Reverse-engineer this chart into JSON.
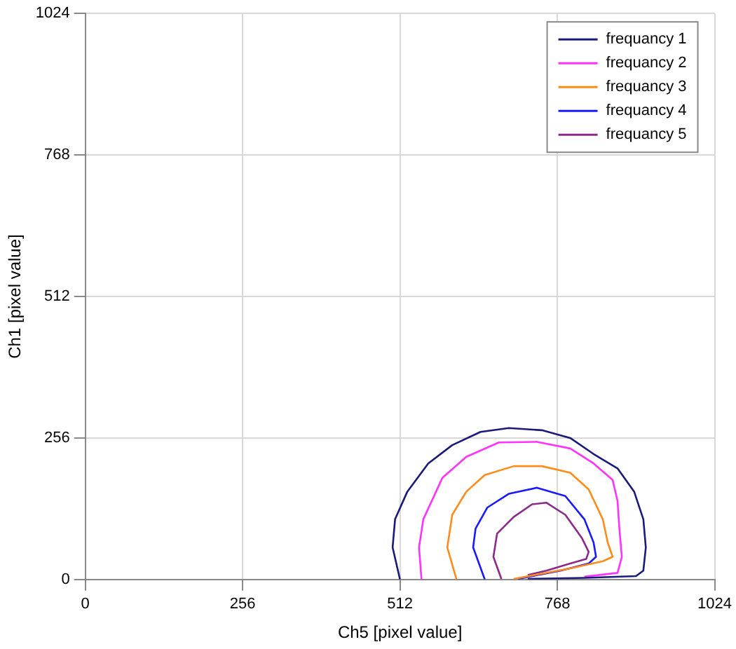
{
  "chart_data": {
    "type": "line",
    "xlabel": "Ch5 [pixel value]",
    "ylabel": "Ch1 [pixel value]",
    "xlim": [
      0,
      1024
    ],
    "ylim": [
      0,
      1024
    ],
    "xticks": [
      0,
      256,
      512,
      768,
      1024
    ],
    "yticks": [
      0,
      256,
      512,
      768,
      1024
    ],
    "grid": true,
    "legend": "top right",
    "marker": "none",
    "line_style": "solid",
    "series": [
      {
        "name": "frequancy 1",
        "color": "#1a1a7a",
        "x": [
          512,
          500,
          504,
          524,
          558,
          597,
          643,
          689,
          743,
          789,
          827,
          866,
          893,
          908,
          912,
          908,
          896,
          812,
          720
        ],
        "values": [
          0,
          58,
          109,
          159,
          210,
          243,
          267,
          274,
          270,
          256,
          227,
          201,
          159,
          109,
          58,
          16,
          6,
          3,
          1
        ]
      },
      {
        "name": "frequancy 2",
        "color": "#ff33ff",
        "x": [
          547,
          543,
          550,
          581,
          620,
          673,
          735,
          789,
          827,
          858,
          866,
          869,
          873,
          866,
          812
        ],
        "values": [
          0,
          58,
          109,
          184,
          222,
          248,
          249,
          237,
          210,
          180,
          142,
          92,
          41,
          12,
          5
        ]
      },
      {
        "name": "frequancy 3",
        "color": "#ff8c1a",
        "x": [
          604,
          589,
          597,
          620,
          650,
          697,
          743,
          789,
          819,
          842,
          850,
          858,
          842,
          789,
          735,
          697
        ],
        "values": [
          0,
          58,
          117,
          159,
          189,
          205,
          205,
          193,
          163,
          109,
          67,
          41,
          33,
          20,
          9,
          1
        ]
      },
      {
        "name": "frequancy 4",
        "color": "#1a1aff",
        "x": [
          650,
          631,
          635,
          654,
          689,
          735,
          781,
          812,
          827,
          831,
          819,
          773,
          704
        ],
        "values": [
          0,
          58,
          92,
          130,
          155,
          166,
          151,
          109,
          67,
          41,
          29,
          16,
          1
        ]
      },
      {
        "name": "frequancy 5",
        "color": "#8b2a8b",
        "x": [
          677,
          664,
          670,
          697,
          727,
          750,
          781,
          808,
          819,
          815,
          789,
          750,
          720
        ],
        "values": [
          1,
          41,
          83,
          113,
          136,
          139,
          117,
          75,
          50,
          37,
          29,
          16,
          8
        ]
      }
    ]
  }
}
